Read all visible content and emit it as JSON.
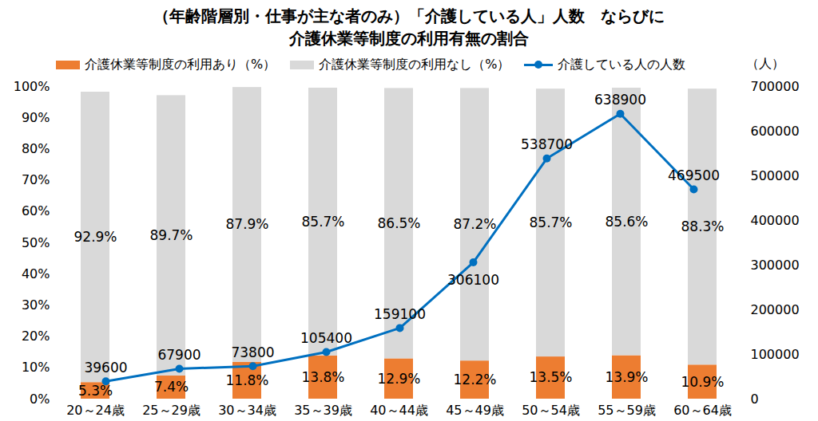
{
  "chart_data": {
    "type": "bar",
    "title": "（年齢階層別・仕事が主な者のみ）「介護している人」人数　ならびに\n介護休業等制度の利用有無の割合",
    "categories": [
      "20～24歳",
      "25～29歳",
      "30～34歳",
      "35～39歳",
      "40～44歳",
      "45～49歳",
      "50～54歳",
      "55～59歳",
      "60～64歳"
    ],
    "stacked": true,
    "data_labels": true,
    "grid": false,
    "legend": "top",
    "series": [
      {
        "name": "介護休業等制度の利用あり（%）",
        "type": "bar",
        "color": "#ed7d31",
        "values": [
          5.3,
          7.4,
          11.8,
          13.8,
          12.9,
          12.2,
          13.5,
          13.9,
          10.9
        ],
        "value_labels": [
          "5.3%",
          "7.4%",
          "11.8%",
          "13.8%",
          "12.9%",
          "12.2%",
          "13.5%",
          "13.9%",
          "10.9%"
        ]
      },
      {
        "name": "介護休業等制度の利用なし（%）",
        "type": "bar",
        "color": "#d9d9d9",
        "values": [
          92.9,
          89.7,
          87.9,
          85.7,
          86.5,
          87.2,
          85.7,
          85.6,
          88.3
        ],
        "value_labels": [
          "92.9%",
          "89.7%",
          "87.9%",
          "85.7%",
          "86.5%",
          "87.2%",
          "85.7%",
          "85.6%",
          "88.3%"
        ]
      },
      {
        "name": "介護している人の人数",
        "type": "line",
        "color": "#0070c0",
        "marker": "circle",
        "axis": "y2",
        "values": [
          39600,
          67900,
          73800,
          105400,
          159100,
          306100,
          538700,
          638900,
          469500
        ]
      }
    ],
    "ylim": [
      0,
      100
    ],
    "yticks": [
      {
        "value": 0,
        "label": "0%"
      },
      {
        "value": 10,
        "label": "10%"
      },
      {
        "value": 20,
        "label": "20%"
      },
      {
        "value": 30,
        "label": "30%"
      },
      {
        "value": 40,
        "label": "40%"
      },
      {
        "value": 50,
        "label": "50%"
      },
      {
        "value": 60,
        "label": "60%"
      },
      {
        "value": 70,
        "label": "70%"
      },
      {
        "value": 80,
        "label": "80%"
      },
      {
        "value": 90,
        "label": "90%"
      },
      {
        "value": 100,
        "label": "100%"
      }
    ],
    "y2label": "（人）",
    "y2lim": [
      0,
      700000
    ],
    "y2ticks": [
      0,
      100000,
      200000,
      300000,
      400000,
      500000,
      600000,
      700000
    ]
  }
}
